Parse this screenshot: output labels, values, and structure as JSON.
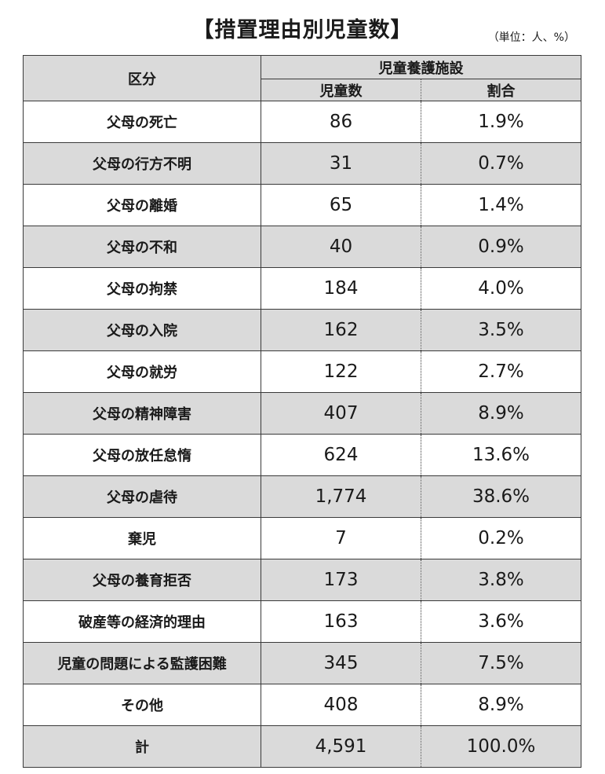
{
  "title": "【措置理由別児童数】",
  "unit": "（単位：人、%）",
  "header": {
    "category": "区分",
    "facility": "児童養護施設",
    "count": "児童数",
    "ratio": "割合"
  },
  "rows": [
    {
      "category": "父母の死亡",
      "count": "86",
      "ratio": "1.9%"
    },
    {
      "category": "父母の行方不明",
      "count": "31",
      "ratio": "0.7%"
    },
    {
      "category": "父母の離婚",
      "count": "65",
      "ratio": "1.4%"
    },
    {
      "category": "父母の不和",
      "count": "40",
      "ratio": "0.9%"
    },
    {
      "category": "父母の拘禁",
      "count": "184",
      "ratio": "4.0%"
    },
    {
      "category": "父母の入院",
      "count": "162",
      "ratio": "3.5%"
    },
    {
      "category": "父母の就労",
      "count": "122",
      "ratio": "2.7%"
    },
    {
      "category": "父母の精神障害",
      "count": "407",
      "ratio": "8.9%"
    },
    {
      "category": "父母の放任怠惰",
      "count": "624",
      "ratio": "13.6%"
    },
    {
      "category": "父母の虐待",
      "count": "1,774",
      "ratio": "38.6%"
    },
    {
      "category": "棄児",
      "count": "7",
      "ratio": "0.2%"
    },
    {
      "category": "父母の養育拒否",
      "count": "173",
      "ratio": "3.8%"
    },
    {
      "category": "破産等の経済的理由",
      "count": "163",
      "ratio": "3.6%"
    },
    {
      "category": "児童の問題による監護困難",
      "count": "345",
      "ratio": "7.5%"
    },
    {
      "category": "その他",
      "count": "408",
      "ratio": "8.9%"
    }
  ],
  "total": {
    "category": "計",
    "count": "4,591",
    "ratio": "100.0%"
  }
}
